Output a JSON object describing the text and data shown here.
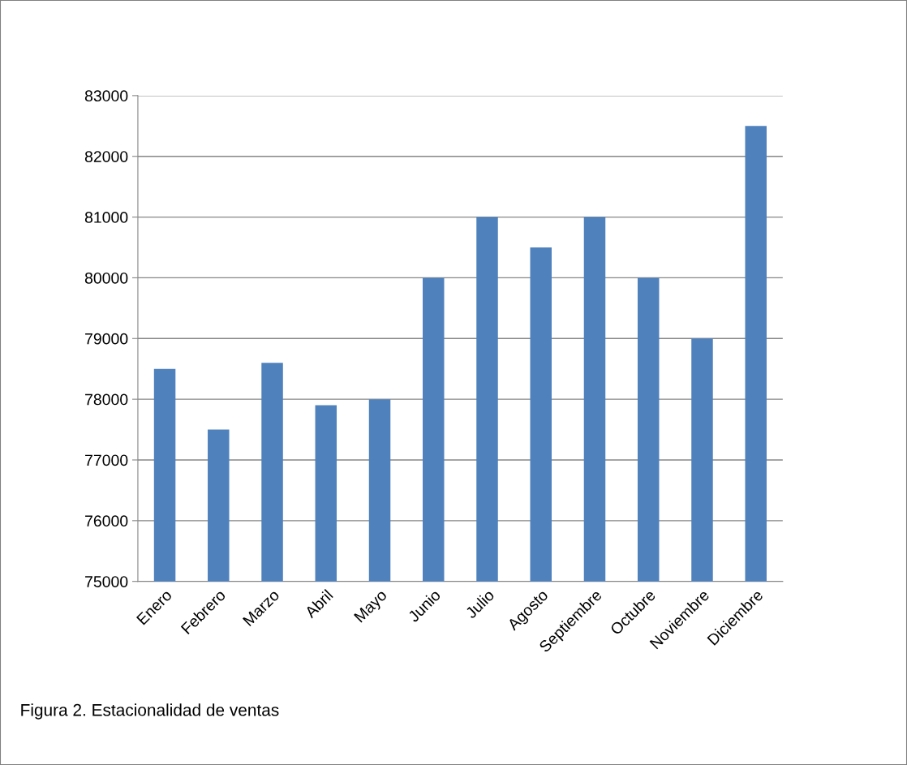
{
  "chart_data": {
    "type": "bar",
    "categories": [
      "Enero",
      "Febrero",
      "Marzo",
      "Abril",
      "Mayo",
      "Junio",
      "Julio",
      "Agosto",
      "Septiembre",
      "Octubre",
      "Noviembre",
      "Diciembre"
    ],
    "values": [
      78500,
      77500,
      78600,
      77900,
      78000,
      80000,
      81000,
      80500,
      81000,
      80000,
      79000,
      82500
    ],
    "color": "#4f81bd",
    "ylim": [
      75000,
      83000
    ],
    "yticks": [
      75000,
      76000,
      77000,
      78000,
      79000,
      80000,
      81000,
      82000,
      83000
    ],
    "grid": "y",
    "annotations": [
      "Figura 2. Estacionalidad de ventas"
    ]
  }
}
